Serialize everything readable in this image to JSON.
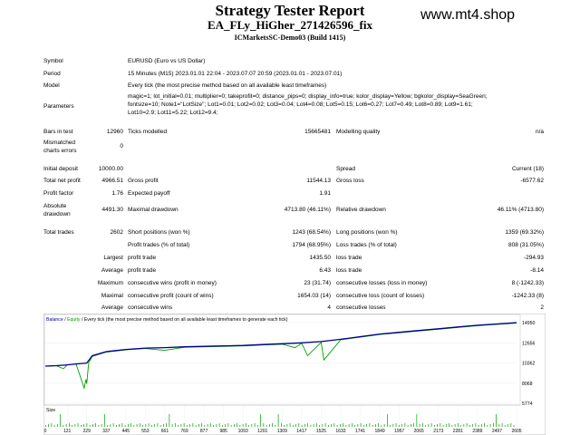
{
  "header": {
    "title": "Strategy Tester Report",
    "ea_name": "EA_FLy_HiGher_271426596_fix",
    "server": "ICMarketsSC-Demo03 (Build 1415)",
    "watermark": "www.mt4.shop"
  },
  "info": {
    "symbol_label": "Symbol",
    "symbol_value": "EURUSD (Euro vs US Dollar)",
    "period_label": "Period",
    "period_value": "15 Minutes (M15) 2023.01.01 22:04 - 2023.07.07 20:59 (2023.01.01 - 2023.07.01)",
    "model_label": "Model",
    "model_value": "Every tick (the most precise method based on all available least timeframes)",
    "params_label": "Parameters",
    "params_line1": "magic=1; lot_initial=0.01; multiplier=0; takeprofit=0; distance_pips=0; display_info=true; kolor_display=Yellow; bgkolor_display=SeaGreen;",
    "params_line2": "fontsize=10; Note1=\"LotSize\"; Lot1=0.01; Lot2=0.02; Lot3=0.04; Lot4=0.08; Lot5=0.15; Lot6=0.27; Lot7=0.49; Lot8=0.89; Lot9=1.61;",
    "params_line3": "Lot10=2.9; Lot11=5.22; Lot12=9.4;"
  },
  "stats": {
    "bars_label": "Bars in test",
    "bars_value": "12960",
    "ticks_label": "Ticks modelled",
    "ticks_value": "15665481",
    "quality_label": "Modelling quality",
    "quality_value": "n/a",
    "mismatch_label1": "Mismatched",
    "mismatch_label2": "charts errors",
    "mismatch_value": "0",
    "deposit_label": "Initial deposit",
    "deposit_value": "10000.00",
    "spread_label": "Spread",
    "spread_value": "Current (18)",
    "netprofit_label": "Total net profit",
    "netprofit_value": "4966.51",
    "grossprofit_label": "Gross profit",
    "grossprofit_value": "11544.13",
    "grossloss_label": "Gross loss",
    "grossloss_value": "-6577.62",
    "pf_label": "Profit factor",
    "pf_value": "1.76",
    "payoff_label": "Expected payoff",
    "payoff_value": "1.91",
    "absdd_label1": "Absolute",
    "absdd_label2": "drawdown",
    "absdd_value": "4491.30",
    "maxdd_label": "Maximal drawdown",
    "maxdd_value": "4713.80 (46.11%)",
    "reldd_label": "Relative drawdown",
    "reldd_value": "46.11% (4713.80)",
    "trades_label": "Total trades",
    "trades_value": "2602",
    "short_label": "Short positions (won %)",
    "short_value": "1243 (68.54%)",
    "long_label": "Long positions (won %)",
    "long_value": "1359 (69.32%)",
    "profit_trades_label": "Profit trades (% of total)",
    "profit_trades_value": "1794 (68.95%)",
    "loss_trades_label": "Loss trades (% of total)",
    "loss_trades_value": "808 (31.05%)",
    "largest_label": "Largest",
    "largest_profit_label": "profit trade",
    "largest_profit_value": "1435.50",
    "largest_loss_label": "loss trade",
    "largest_loss_value": "-294.93",
    "average_label": "Average",
    "average_profit_label": "profit trade",
    "average_profit_value": "6.43",
    "average_loss_label": "loss trade",
    "average_loss_value": "-8.14",
    "maximum_label": "Maximum",
    "max_wins_label": "consecutive wins (profit in money)",
    "max_wins_value": "23 (31.74)",
    "max_losses_label": "consecutive losses (loss in money)",
    "max_losses_value": "8 (-1242.33)",
    "maximal_label": "Maximal",
    "maximal_profit_label": "consecutive profit (count of wins)",
    "maximal_profit_value": "1654.03 (14)",
    "maximal_loss_label": "consecutive loss (count of losses)",
    "maximal_loss_value": "-1242.33 (8)",
    "avg2_label": "Average",
    "avg_wins_label": "consecutive wins",
    "avg_wins_value": "4",
    "avg_losses_label": "consecutive losses",
    "avg_losses_value": "2"
  },
  "chart": {
    "legend_balance": "Balance",
    "legend_sep1": " / ",
    "legend_equity": "Equity",
    "legend_rest": " / Every tick (the most precise method based on all available least timeframes to generate each tick)",
    "size_label": "Size",
    "balance_color": "#00008b",
    "equity_color": "#00a000",
    "y_ticks": [
      "14950",
      "12656",
      "10362",
      "8068",
      "5774"
    ],
    "x_ticks": [
      "0",
      "121",
      "229",
      "337",
      "445",
      "553",
      "661",
      "769",
      "877",
      "985",
      "1093",
      "1201",
      "1309",
      "1417",
      "1525",
      "1633",
      "1741",
      "1849",
      "1957",
      "2065",
      "2173",
      "2281",
      "2389",
      "2497",
      "2605"
    ]
  },
  "chart_data": {
    "type": "line",
    "title": "",
    "xlabel": "",
    "ylabel": "",
    "ylim": [
      5774,
      14950
    ],
    "xlim": [
      0,
      2605
    ],
    "series": [
      {
        "name": "Balance",
        "x": [
          0,
          60,
          121,
          170,
          200,
          229,
          260,
          337,
          445,
          553,
          661,
          769,
          877,
          985,
          1093,
          1201,
          1309,
          1417,
          1525,
          1633,
          1741,
          1849,
          1957,
          2065,
          2173,
          2281,
          2389,
          2497,
          2605
        ],
        "y": [
          10000,
          10050,
          10150,
          10250,
          10300,
          10350,
          11200,
          11650,
          11900,
          12050,
          12100,
          12200,
          12250,
          12300,
          12350,
          12450,
          12550,
          12650,
          12800,
          13050,
          13350,
          13650,
          13850,
          14050,
          14250,
          14450,
          14650,
          14800,
          14950
        ]
      },
      {
        "name": "Equity",
        "x": [
          0,
          60,
          100,
          121,
          170,
          215,
          225,
          229,
          240,
          260,
          337,
          445,
          553,
          661,
          769,
          877,
          985,
          1093,
          1201,
          1309,
          1380,
          1417,
          1450,
          1525,
          1540,
          1633,
          1741,
          1849,
          1957,
          2065,
          2173,
          2281,
          2389,
          2497,
          2605
        ],
        "y": [
          10000,
          10050,
          9700,
          10150,
          10250,
          7500,
          8500,
          8000,
          10400,
          11100,
          11600,
          11850,
          12000,
          11800,
          12150,
          12200,
          12250,
          12300,
          12400,
          12500,
          12100,
          12600,
          11200,
          12700,
          10700,
          13000,
          13300,
          13600,
          13800,
          14000,
          14200,
          14400,
          14600,
          14750,
          14900
        ]
      }
    ]
  }
}
